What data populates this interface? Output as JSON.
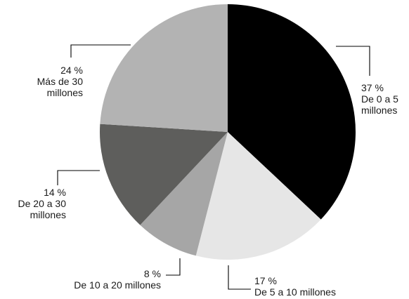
{
  "chart_data": {
    "type": "pie",
    "title": "",
    "slices": [
      {
        "percent": 37,
        "pct_label": "37 %",
        "category": "De 0 a 5 millones",
        "category_lines": [
          "De 0 a 5",
          "millones"
        ],
        "color": "#000000"
      },
      {
        "percent": 17,
        "pct_label": "17 %",
        "category": "De 5 a 10 millones",
        "category_lines": [
          "De 5 a 10 millones"
        ],
        "color": "#e6e6e6"
      },
      {
        "percent": 8,
        "pct_label": "8 %",
        "category": "De 10 a 20 millones",
        "category_lines": [
          "De 10 a 20 millones"
        ],
        "color": "#a6a6a6"
      },
      {
        "percent": 14,
        "pct_label": "14 %",
        "category": "De 20 a 30 millones",
        "category_lines": [
          "De 20 a 30",
          "millones"
        ],
        "color": "#5e5e5c"
      },
      {
        "percent": 24,
        "pct_label": "24 %",
        "category": "Más de 30 millones",
        "category_lines": [
          "Más de 30",
          "millones"
        ],
        "color": "#b3b3b3"
      }
    ]
  }
}
